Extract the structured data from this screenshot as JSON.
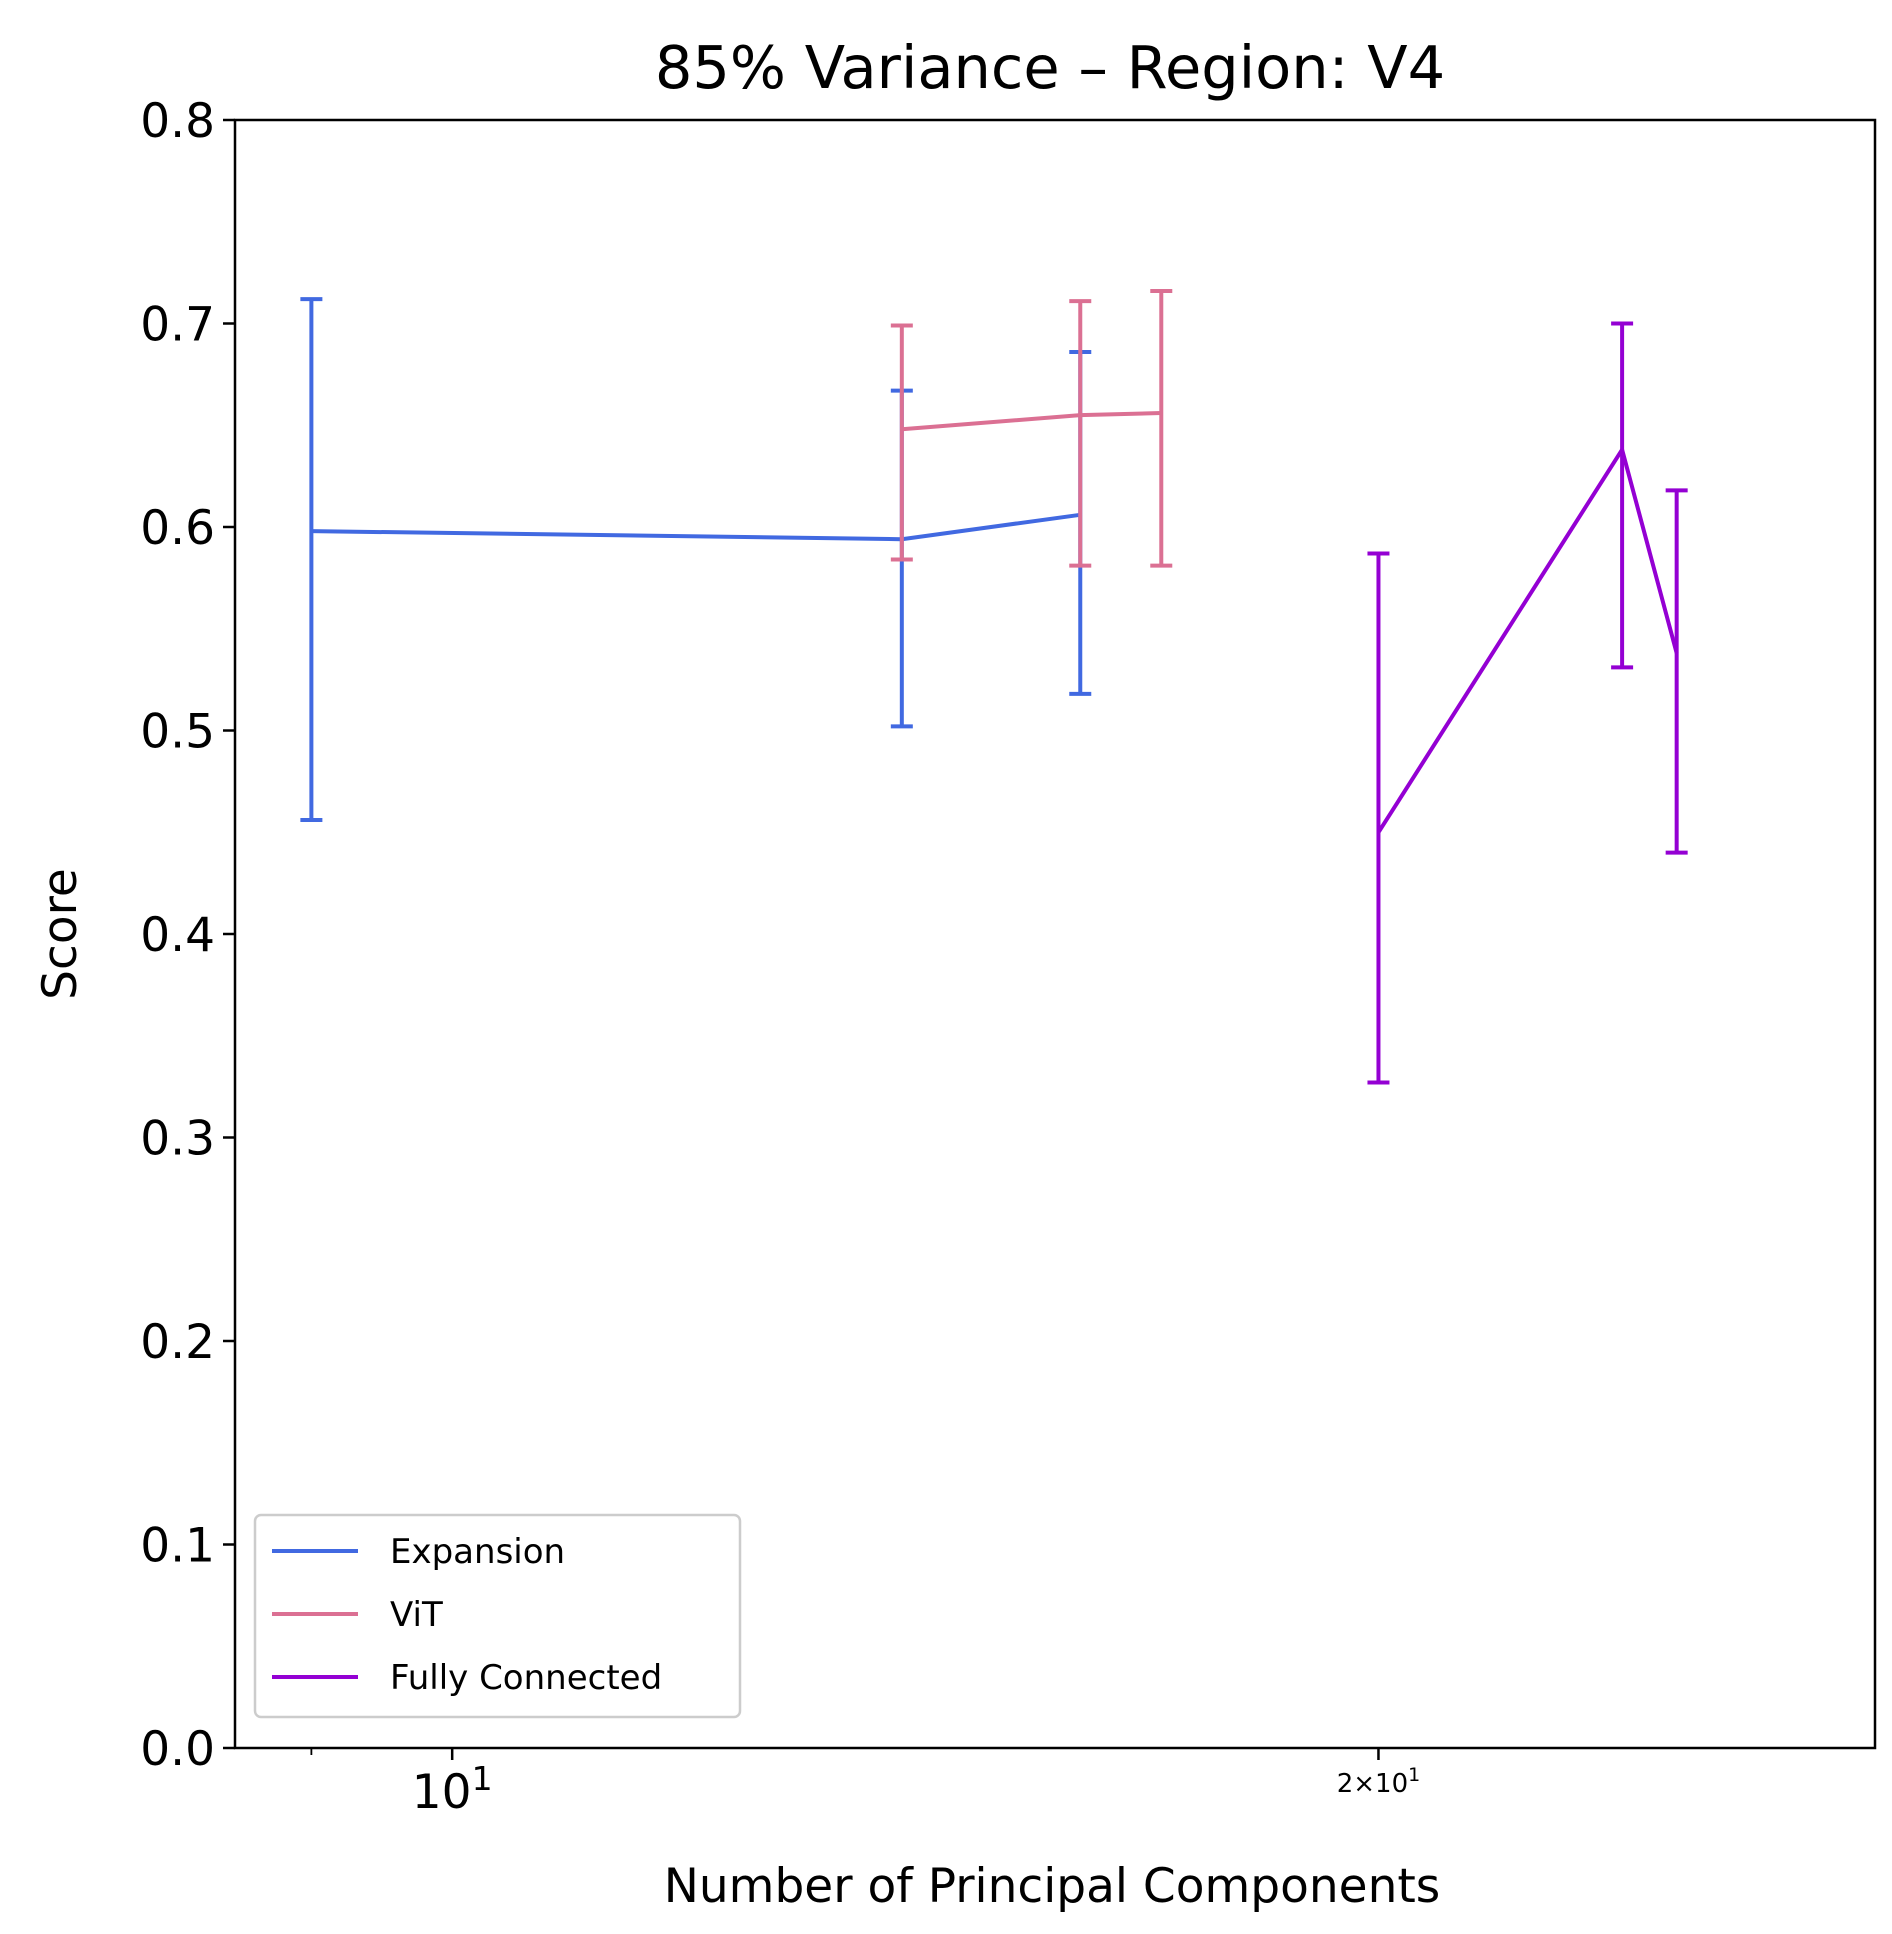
{
  "chart_data": {
    "type": "line",
    "title": "85% Variance – Region: V4",
    "xlabel": "Number of Principal Components",
    "ylabel": "Score",
    "xscale": "log",
    "xlim": [
      8.5,
      29
    ],
    "ylim": [
      0.0,
      0.8
    ],
    "x_ticks": [
      {
        "value": 10,
        "base": "10",
        "exp": "1"
      },
      {
        "value": 20,
        "base": "2×10",
        "exp": "1"
      }
    ],
    "y_ticks": [
      "0.0",
      "0.1",
      "0.2",
      "0.3",
      "0.4",
      "0.5",
      "0.6",
      "0.7",
      "0.8"
    ],
    "grid": false,
    "legend_position": "lower-left",
    "series": [
      {
        "name": "Expansion",
        "color": "#4169e1",
        "x": [
          9,
          14,
          16
        ],
        "y": [
          0.598,
          0.594,
          0.606
        ],
        "err_low": [
          0.456,
          0.502,
          0.518
        ],
        "err_high": [
          0.712,
          0.667,
          0.686
        ]
      },
      {
        "name": "ViT",
        "color": "#db7093",
        "x": [
          14,
          16,
          17
        ],
        "y": [
          0.648,
          0.655,
          0.656
        ],
        "err_low": [
          0.584,
          0.581,
          0.581
        ],
        "err_high": [
          0.699,
          0.711,
          0.716
        ]
      },
      {
        "name": "Fully Connected",
        "color": "#9400d3",
        "x": [
          20,
          24,
          25
        ],
        "y": [
          0.45,
          0.638,
          0.538
        ],
        "err_low": [
          0.327,
          0.531,
          0.44
        ],
        "err_high": [
          0.587,
          0.7,
          0.618
        ]
      }
    ]
  }
}
